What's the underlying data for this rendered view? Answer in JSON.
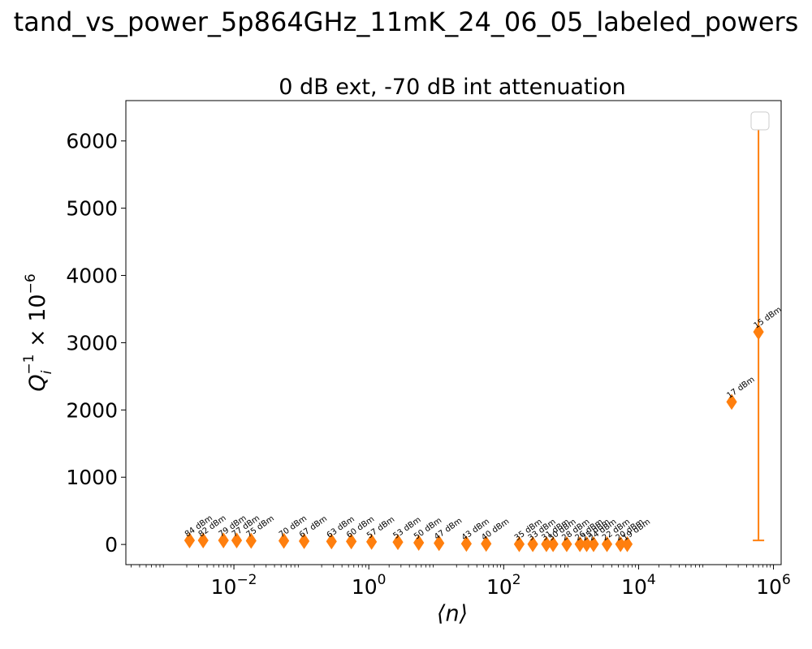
{
  "figure_title": "tand_vs_power_5p864GHz_11mK_24_06_05_labeled_powers",
  "chart_data": {
    "type": "scatter",
    "title": "0 dB ext, -70 dB int attenuation",
    "xlabel": "⟨n⟩",
    "ylabel": "Q_i^-1 × 10^-6",
    "xscale": "log",
    "xlim": [
      0.00025,
      1300000
    ],
    "ylim": [
      -300,
      6600
    ],
    "x_ticks": [
      {
        "value": 0.01,
        "base": "10",
        "exp": "−2"
      },
      {
        "value": 1,
        "base": "10",
        "exp": "0"
      },
      {
        "value": 100,
        "base": "10",
        "exp": "2"
      },
      {
        "value": 10000,
        "base": "10",
        "exp": "4"
      },
      {
        "value": 1000000,
        "base": "10",
        "exp": "6"
      }
    ],
    "y_ticks": [
      0,
      1000,
      2000,
      3000,
      4000,
      5000,
      6000
    ],
    "legend": {
      "placement": "upper right",
      "entries": []
    },
    "marker_color": "#ff7f0e",
    "marker": "diamond",
    "points": [
      {
        "label": "84 dBm",
        "n": 0.0022,
        "q": 60
      },
      {
        "label": "82 dBm",
        "n": 0.0035,
        "q": 60
      },
      {
        "label": "79 dBm",
        "n": 0.007,
        "q": 60
      },
      {
        "label": "77 dBm",
        "n": 0.011,
        "q": 60
      },
      {
        "label": "75 dBm",
        "n": 0.018,
        "q": 55
      },
      {
        "label": "70 dBm",
        "n": 0.055,
        "q": 55
      },
      {
        "label": "67 dBm",
        "n": 0.11,
        "q": 50
      },
      {
        "label": "63 dBm",
        "n": 0.28,
        "q": 45
      },
      {
        "label": "60 dBm",
        "n": 0.55,
        "q": 45
      },
      {
        "label": "57 dBm",
        "n": 1.1,
        "q": 40
      },
      {
        "label": "53 dBm",
        "n": 2.7,
        "q": 35
      },
      {
        "label": "50 dBm",
        "n": 5.5,
        "q": 25
      },
      {
        "label": "47 dBm",
        "n": 11,
        "q": 20
      },
      {
        "label": "43 dBm",
        "n": 28,
        "q": 10
      },
      {
        "label": "40 dBm",
        "n": 55,
        "q": 10
      },
      {
        "label": "35 dBm",
        "n": 170,
        "q": 5
      },
      {
        "label": "33 dBm",
        "n": 270,
        "q": 5
      },
      {
        "label": "31 dBm",
        "n": 430,
        "q": 5
      },
      {
        "label": "30 dBm",
        "n": 540,
        "q": 5
      },
      {
        "label": "28 dBm",
        "n": 860,
        "q": 5
      },
      {
        "label": "26 dBm",
        "n": 1350,
        "q": 5
      },
      {
        "label": "25 dBm",
        "n": 1700,
        "q": 5
      },
      {
        "label": "24 dBm",
        "n": 2150,
        "q": 5
      },
      {
        "label": "22 dBm",
        "n": 3400,
        "q": 5
      },
      {
        "label": "20 dBm",
        "n": 5400,
        "q": 5
      },
      {
        "label": "19 dBm",
        "n": 6800,
        "q": 5
      },
      {
        "label": "17 dBm",
        "n": 240000,
        "q": 2120
      },
      {
        "label": "15 dBm",
        "n": 600000,
        "q": 3160,
        "err_low": 60,
        "err_high": 6280
      }
    ]
  }
}
